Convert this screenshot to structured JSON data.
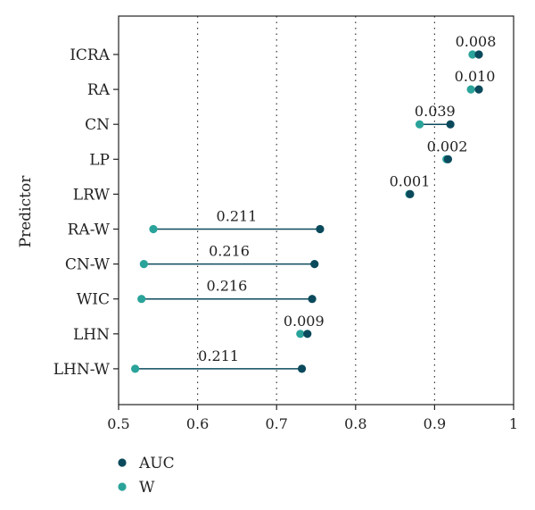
{
  "chart_data": {
    "type": "dumbbell",
    "title": "",
    "xlabel": "",
    "ylabel": "Predictor",
    "xlim": [
      0.5,
      1.0
    ],
    "xticks": [
      "0.5",
      "0.6",
      "0.7",
      "0.8",
      "0.9",
      "1"
    ],
    "grid": "dotted vertical lines at 0.6, 0.7, 0.8, 0.9",
    "legend_placement": "bottom-left",
    "colors": {
      "AUC": "#0b4a5c",
      "W": "#2aa39a",
      "connector": "#0b4a5c"
    },
    "categories": [
      "ICRA",
      "RA",
      "CN",
      "LP",
      "LRW",
      "RA-W",
      "CN-W",
      "WIC",
      "LHN",
      "LHN-W"
    ],
    "series": [
      {
        "name": "AUC",
        "values": [
          0.956,
          0.956,
          0.92,
          0.917,
          0.869,
          0.755,
          0.748,
          0.745,
          0.739,
          0.732
        ]
      },
      {
        "name": "W",
        "values": [
          0.948,
          0.946,
          0.881,
          0.915,
          0.868,
          0.544,
          0.532,
          0.529,
          0.73,
          0.521
        ]
      }
    ],
    "difference_labels": [
      "0.008",
      "0.010",
      "0.039",
      "0.002",
      "0.001",
      "0.211",
      "0.216",
      "0.216",
      "0.009",
      "0.211"
    ]
  }
}
